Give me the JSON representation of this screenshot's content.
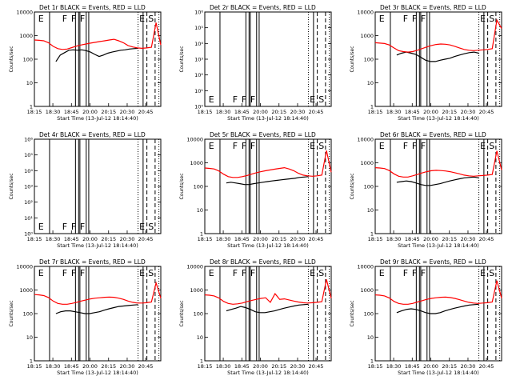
{
  "chart_data": [
    {
      "type": "line",
      "title": "Det 1r BLACK = Events, RED = LLD",
      "xlabel": "Start Time (13-Jul-12 18:14:40)",
      "ylabel": "Counts/sec",
      "yscale": "log",
      "ylim": [
        1,
        10000
      ],
      "yticks": [
        "1",
        "10",
        "100",
        "1000",
        "10000"
      ],
      "xticks": [
        "18:15",
        "18:30",
        "18:45",
        "20:00",
        "20:15",
        "20:30",
        "20:45"
      ],
      "flags": [
        "E",
        "F",
        "F",
        "F",
        "E",
        "S"
      ],
      "series": [
        {
          "color": "#000000",
          "y": [
            80,
            150,
            190,
            240,
            250,
            240,
            250,
            230,
            200,
            160,
            130,
            150,
            180,
            200,
            220,
            240,
            250,
            270,
            280,
            290
          ]
        },
        {
          "color": "#ff0000",
          "y": [
            650,
            630,
            600,
            500,
            350,
            280,
            260,
            270,
            310,
            360,
            400,
            440,
            480,
            520,
            560,
            600,
            650,
            700,
            600,
            500,
            380,
            330,
            300,
            290,
            300,
            320,
            3500,
            400
          ]
        }
      ]
    },
    {
      "type": "line",
      "title": "Det 2r BLACK = Events, RED = LLD",
      "xlabel": "Start Time (13-Jul-12 18:14:40)",
      "ylabel": "Counts/sec",
      "yscale": "log",
      "ylim": [
        1,
        1000000
      ],
      "yticks": [
        "10⁰",
        "10¹",
        "10²",
        "10³",
        "10⁴",
        "10⁵",
        "10⁶"
      ],
      "xticks": [
        "18:15",
        "18:30",
        "18:45",
        "20:00",
        "20:15",
        "20:30",
        "20:45"
      ],
      "flags": [
        "E",
        "F",
        "F",
        "F",
        "E",
        "S"
      ],
      "series": []
    },
    {
      "type": "line",
      "title": "Det 3r BLACK = Events, RED = LLD",
      "xlabel": "Start Time (13-Jul-12 18:14:40)",
      "ylabel": "Counts/sec",
      "yscale": "log",
      "ylim": [
        1,
        10000
      ],
      "yticks": [
        "1",
        "10",
        "100",
        "1000",
        "10000"
      ],
      "xticks": [
        "18:15",
        "18:30",
        "18:45",
        "20:00",
        "20:15",
        "20:30",
        "20:45"
      ],
      "flags": [
        "E",
        "F",
        "F",
        "F",
        "E",
        "S"
      ],
      "series": [
        {
          "color": "#000000",
          "y": [
            150,
            180,
            200,
            180,
            160,
            120,
            90,
            80,
            80,
            90,
            100,
            110,
            130,
            150,
            170,
            190,
            200,
            180
          ]
        },
        {
          "color": "#ff0000",
          "y": [
            500,
            480,
            460,
            400,
            300,
            230,
            210,
            200,
            210,
            240,
            280,
            330,
            380,
            420,
            440,
            430,
            400,
            350,
            300,
            260,
            240,
            230,
            240,
            250,
            260,
            280,
            4500,
            2000
          ]
        }
      ]
    },
    {
      "type": "line",
      "title": "Det 4r BLACK = Events, RED = LLD",
      "xlabel": "Start Time (13-Jul-12 18:14:40)",
      "ylabel": "Counts/sec",
      "yscale": "log",
      "ylim": [
        1,
        1000000
      ],
      "yticks": [
        "10⁰",
        "10¹",
        "10²",
        "10³",
        "10⁴",
        "10⁵",
        "10⁶"
      ],
      "xticks": [
        "18:15",
        "18:30",
        "18:45",
        "20:00",
        "20:15",
        "20:30",
        "20:45"
      ],
      "flags": [
        "E",
        "F",
        "F",
        "F",
        "E",
        "S"
      ],
      "series": []
    },
    {
      "type": "line",
      "title": "Det 5r BLACK = Events, RED = LLD",
      "xlabel": "Start Time (13-Jul-12 18:14:40)",
      "ylabel": "Counts/sec",
      "yscale": "log",
      "ylim": [
        1,
        10000
      ],
      "yticks": [
        "1",
        "10",
        "100",
        "1000",
        "10000"
      ],
      "xticks": [
        "18:15",
        "18:30",
        "18:45",
        "20:00",
        "20:15",
        "20:30",
        "20:45"
      ],
      "flags": [
        "E",
        "F",
        "F",
        "F",
        "E",
        "S"
      ],
      "series": [
        {
          "color": "#000000",
          "y": [
            140,
            150,
            140,
            130,
            120,
            120,
            130,
            140,
            150,
            160,
            170,
            180,
            190,
            200,
            210,
            220,
            240,
            250,
            260
          ]
        },
        {
          "color": "#ff0000",
          "y": [
            600,
            580,
            550,
            450,
            330,
            260,
            240,
            240,
            260,
            290,
            330,
            380,
            420,
            460,
            500,
            540,
            580,
            620,
            550,
            460,
            360,
            300,
            280,
            270,
            280,
            300,
            3300,
            400
          ]
        }
      ]
    },
    {
      "type": "line",
      "title": "Det 6r BLACK = Events, RED = LLD",
      "xlabel": "Start Time (13-Jul-12 18:14:40)",
      "ylabel": "Counts/sec",
      "yscale": "log",
      "ylim": [
        1,
        10000
      ],
      "yticks": [
        "1",
        "10",
        "100",
        "1000",
        "10000"
      ],
      "xticks": [
        "18:15",
        "18:30",
        "18:45",
        "20:00",
        "20:15",
        "20:30",
        "20:45"
      ],
      "flags": [
        "E",
        "F",
        "F",
        "F",
        "E",
        "S"
      ],
      "series": [
        {
          "color": "#000000",
          "y": [
            150,
            160,
            170,
            160,
            140,
            120,
            110,
            110,
            120,
            130,
            150,
            170,
            190,
            210,
            230,
            240,
            250,
            230
          ]
        },
        {
          "color": "#ff0000",
          "y": [
            620,
            600,
            570,
            470,
            340,
            270,
            250,
            250,
            280,
            320,
            370,
            420,
            460,
            480,
            470,
            450,
            420,
            380,
            340,
            300,
            280,
            270,
            280,
            290,
            300,
            320,
            3200,
            500
          ]
        }
      ]
    },
    {
      "type": "line",
      "title": "Det 7r BLACK = Events, RED = LLD",
      "xlabel": "Start Time (13-Jul-12 18:14:40)",
      "ylabel": "Counts/sec",
      "yscale": "log",
      "ylim": [
        1,
        10000
      ],
      "yticks": [
        "1",
        "10",
        "100",
        "1000",
        "10000"
      ],
      "xticks": [
        "18:15",
        "18:30",
        "18:45",
        "20:00",
        "20:15",
        "20:30",
        "20:45"
      ],
      "flags": [
        "E",
        "F",
        "F",
        "F",
        "E",
        "S"
      ],
      "series": [
        {
          "color": "#000000",
          "y": [
            100,
            120,
            130,
            130,
            120,
            110,
            100,
            100,
            110,
            120,
            140,
            160,
            180,
            200,
            210,
            220,
            230,
            240
          ]
        },
        {
          "color": "#ff0000",
          "y": [
            640,
            620,
            580,
            480,
            340,
            270,
            250,
            250,
            270,
            300,
            340,
            380,
            420,
            450,
            470,
            490,
            500,
            490,
            450,
            400,
            340,
            300,
            280,
            280,
            290,
            310,
            2000,
            450
          ]
        }
      ]
    },
    {
      "type": "line",
      "title": "Det 8r BLACK = Events, RED = LLD",
      "xlabel": "Start Time (13-Jul-12 18:14:40)",
      "ylabel": "Counts/sec",
      "yscale": "log",
      "ylim": [
        1,
        10000
      ],
      "yticks": [
        "1",
        "10",
        "100",
        "1000",
        "10000"
      ],
      "xticks": [
        "18:15",
        "18:30",
        "18:45",
        "20:00",
        "20:15",
        "20:30",
        "20:45"
      ],
      "flags": [
        "E",
        "F",
        "F",
        "F",
        "E",
        "S"
      ],
      "series": [
        {
          "color": "#000000",
          "y": [
            130,
            150,
            170,
            200,
            180,
            150,
            120,
            110,
            110,
            120,
            130,
            150,
            170,
            190,
            210,
            230,
            240,
            250
          ]
        },
        {
          "color": "#ff0000",
          "y": [
            620,
            600,
            560,
            460,
            330,
            270,
            250,
            260,
            280,
            320,
            360,
            400,
            440,
            470,
            300,
            700,
            400,
            420,
            380,
            340,
            310,
            290,
            280,
            290,
            300,
            320,
            2800,
            450
          ]
        }
      ]
    },
    {
      "type": "line",
      "title": "Det 9r BLACK = Events, RED = LLD",
      "xlabel": "Start Time (13-Jul-12 18:14:40)",
      "ylabel": "Counts/sec",
      "yscale": "log",
      "ylim": [
        1,
        10000
      ],
      "yticks": [
        "1",
        "10",
        "100",
        "1000",
        "10000"
      ],
      "xticks": [
        "18:15",
        "18:30",
        "18:45",
        "20:00",
        "20:15",
        "20:30",
        "20:45"
      ],
      "flags": [
        "E",
        "F",
        "F",
        "F",
        "E",
        "S"
      ],
      "series": [
        {
          "color": "#000000",
          "y": [
            110,
            130,
            150,
            160,
            150,
            130,
            110,
            100,
            100,
            110,
            130,
            150,
            170,
            190,
            210,
            230,
            240,
            250
          ]
        },
        {
          "color": "#ff0000",
          "y": [
            620,
            600,
            560,
            460,
            330,
            270,
            250,
            250,
            270,
            310,
            350,
            400,
            440,
            470,
            490,
            500,
            480,
            440,
            390,
            340,
            300,
            280,
            270,
            280,
            290,
            310,
            2500,
            450
          ]
        }
      ]
    }
  ]
}
